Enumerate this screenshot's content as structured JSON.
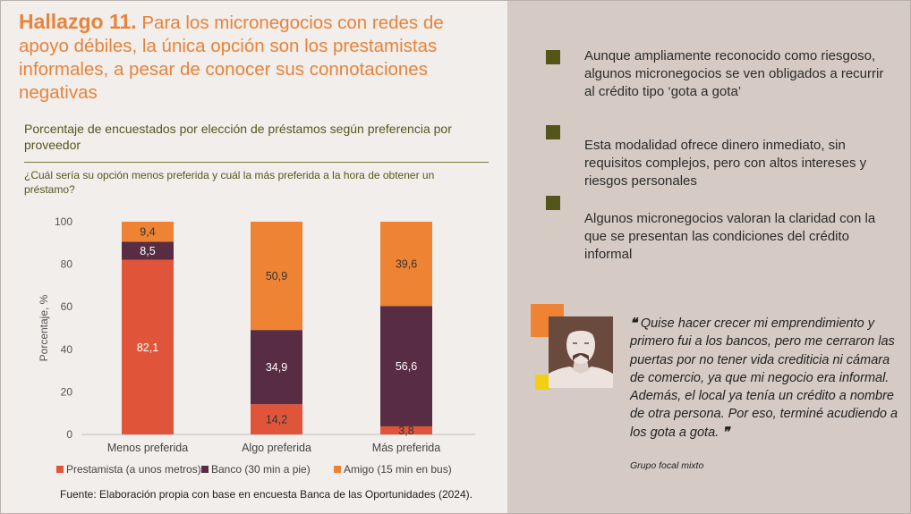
{
  "title": {
    "bold": "Hallazgo 11.",
    "text": "Para los micronegocios con redes de apoyo débiles, la única opción son los prestamistas informales, a pesar de conocer sus connotaciones negativas"
  },
  "subtitle": "Porcentaje de encuestados por elección de préstamos según preferencia por proveedor",
  "question": "¿Cuál sería su opción menos preferida y cuál la más preferida a la hora de obtener un préstamo?",
  "chart_data": {
    "type": "bar",
    "stacked": true,
    "categories": [
      "Menos preferida",
      "Algo preferida",
      "Más preferida"
    ],
    "series": [
      {
        "name": "Prestamista (a unos metros)",
        "values": [
          82.1,
          14.2,
          3.8
        ],
        "labels": [
          "82,1",
          "14,2",
          "3,8"
        ],
        "color": "#e0553a"
      },
      {
        "name": "Banco (30 min a pie)",
        "values": [
          8.5,
          34.9,
          56.6
        ],
        "labels": [
          "8,5",
          "34,9",
          "56,6"
        ],
        "color": "#582c42"
      },
      {
        "name": "Amigo (15 min en bus)",
        "values": [
          9.4,
          50.9,
          39.6
        ],
        "labels": [
          "9,4",
          "50,9",
          "39,6"
        ],
        "color": "#ee8433"
      }
    ],
    "ylabel": "Porcentaje, %",
    "ylim": [
      0,
      100
    ],
    "yticks": [
      0,
      20,
      40,
      60,
      80,
      100
    ],
    "grid": false,
    "legend_position": "bottom"
  },
  "source": "Fuente: Elaboración propia con base en encuesta Banca de las Oportunidades (2024).",
  "bullets": [
    "Aunque ampliamente reconocido como riesgoso, algunos micronegocios se ven obligados a recurrir al crédito tipo ‘gota a gota’",
    "Esta modalidad ofrece dinero inmediato, sin requisitos complejos, pero con altos intereses y riesgos personales",
    "Algunos micronegocios valoran la claridad con la que se presentan las condiciones del crédito informal"
  ],
  "quote": {
    "open_mark": "❝",
    "text": "Quise hacer crecer mi emprendimiento y primero fui a los bancos, pero me cerraron las puertas por no tener vida crediticia ni cámara de comercio, ya que mi negocio era informal. Además, el local ya tenía un crédito a nombre de otra persona. Por eso, terminé acudiendo a los gota a gota.",
    "close_mark": "❞",
    "source": "Grupo focal mixto"
  },
  "colors": {
    "accent": "#e8833a",
    "bullet": "#535519",
    "left_bg": "#f1eeec",
    "right_bg": "#d5cac4",
    "text_olive": "#57571c"
  }
}
